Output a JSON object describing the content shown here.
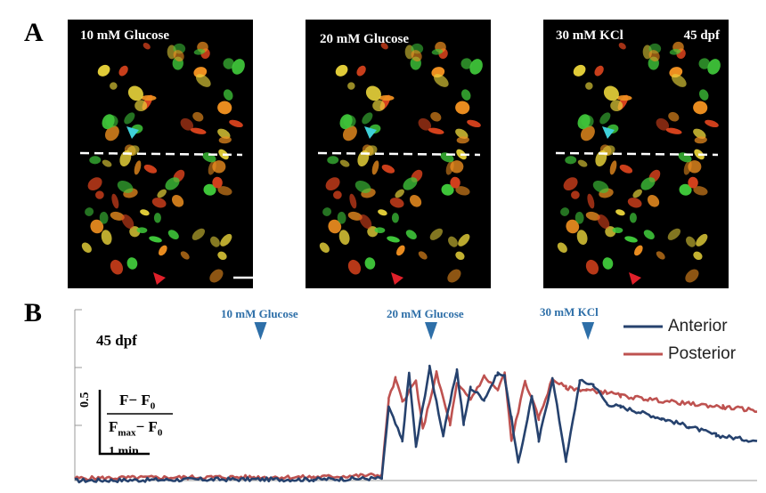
{
  "panel_a": {
    "letter": "A",
    "images": [
      {
        "label": "10 mM Glucose",
        "stage": ""
      },
      {
        "label": "20 mM Glucose",
        "stage": ""
      },
      {
        "label": "30 mM KCl",
        "stage": "45 dpf"
      }
    ]
  },
  "panel_b": {
    "letter": "B",
    "stage": "45 dpf",
    "scale_y": "0.5",
    "scale_x": "1 min",
    "ylabel_num": "F− F",
    "ylabel_num_sub": "0",
    "ylabel_den": "F",
    "ylabel_den_sub1": "max",
    "ylabel_den_mid": "− F",
    "ylabel_den_sub2": "0",
    "markers": [
      "10 mM Glucose",
      "20 mM Glucose",
      "30 mM KCl"
    ],
    "legend": [
      "Anterior",
      "Posterior"
    ]
  },
  "colors": {
    "anterior": "#26426E",
    "posterior": "#BE5250",
    "marker": "#2E6FA8",
    "cyan_arrow": "#3FD0D8",
    "red_arrow": "#E0202A"
  },
  "chart_data": {
    "type": "line",
    "xlabel": "",
    "ylabel": "",
    "markers": [
      {
        "label": "10 mM Glucose",
        "x": 0.28
      },
      {
        "label": "20 mM Glucose",
        "x": 0.53
      },
      {
        "label": "30 mM KCl",
        "x": 0.76
      }
    ],
    "series": [
      {
        "name": "Anterior",
        "x": [
          0,
          0.2,
          0.35,
          0.45,
          0.46,
          0.48,
          0.49,
          0.5,
          0.52,
          0.54,
          0.56,
          0.57,
          0.58,
          0.6,
          0.62,
          0.63,
          0.64,
          0.65,
          0.67,
          0.68,
          0.7,
          0.72,
          0.74,
          0.76,
          0.78,
          0.8,
          0.82,
          0.86,
          0.9,
          0.94,
          1.0
        ],
        "y": [
          0,
          0.01,
          0.01,
          0.02,
          0.65,
          0.35,
          0.95,
          0.3,
          1.0,
          0.4,
          0.98,
          0.5,
          0.82,
          0.72,
          0.95,
          0.92,
          0.55,
          0.15,
          0.75,
          0.35,
          0.9,
          0.18,
          0.88,
          0.85,
          0.68,
          0.65,
          0.62,
          0.55,
          0.48,
          0.4,
          0.35
        ]
      },
      {
        "name": "Posterior",
        "x": [
          0,
          0.2,
          0.35,
          0.45,
          0.46,
          0.47,
          0.48,
          0.5,
          0.51,
          0.53,
          0.55,
          0.56,
          0.58,
          0.6,
          0.62,
          0.63,
          0.64,
          0.66,
          0.68,
          0.7,
          0.72,
          0.75,
          0.78,
          0.8,
          0.84,
          0.9,
          0.95,
          1.0
        ],
        "y": [
          0.02,
          0.03,
          0.03,
          0.05,
          0.72,
          0.9,
          0.7,
          0.88,
          0.45,
          0.95,
          0.5,
          0.85,
          0.72,
          0.92,
          0.8,
          0.95,
          0.35,
          0.88,
          0.55,
          0.9,
          0.82,
          0.8,
          0.78,
          0.75,
          0.72,
          0.68,
          0.65,
          0.62
        ]
      }
    ]
  }
}
